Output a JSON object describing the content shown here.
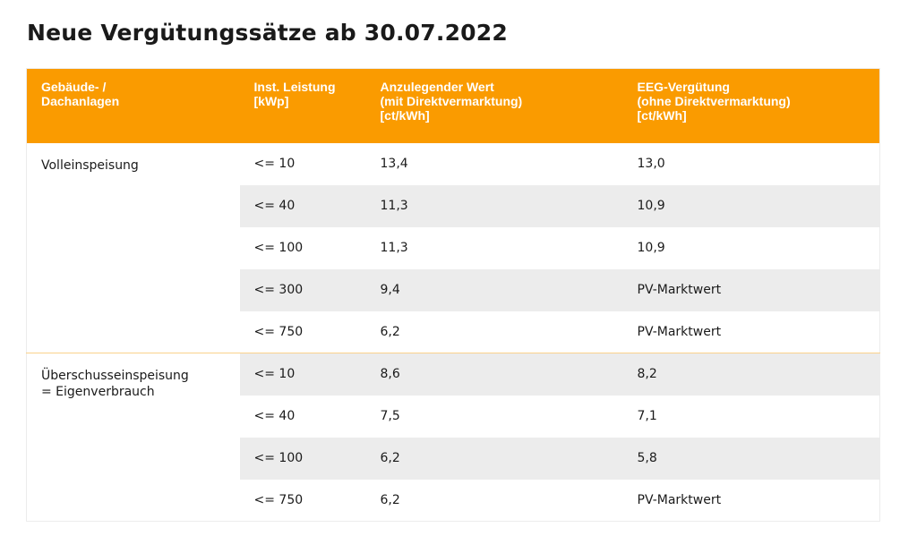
{
  "title": "Neue Vergütungssätze ab 30.07.2022",
  "table": {
    "headers": [
      [
        "Gebäude- /",
        "Dachanlagen"
      ],
      [
        "Inst. Leistung",
        "[kWp]"
      ],
      [
        "Anzulegender Wert",
        "(mit Direktvermarktung)",
        "[ct/kWh]"
      ],
      [
        "EEG-Vergütung",
        "(ohne Direktvermarktung)",
        "[ct/kWh]"
      ]
    ],
    "groups": [
      {
        "label": [
          "Volleinspeisung"
        ],
        "rows": [
          {
            "leistung": "<= 10",
            "anzulegender_wert": "13,4",
            "eeg_verguetung": "13,0"
          },
          {
            "leistung": "<= 40",
            "anzulegender_wert": "11,3",
            "eeg_verguetung": "10,9"
          },
          {
            "leistung": "<= 100",
            "anzulegender_wert": "11,3",
            "eeg_verguetung": "10,9"
          },
          {
            "leistung": "<= 300",
            "anzulegender_wert": "9,4",
            "eeg_verguetung": "PV-Marktwert"
          },
          {
            "leistung": "<= 750",
            "anzulegender_wert": "6,2",
            "eeg_verguetung": "PV-Marktwert"
          }
        ]
      },
      {
        "label": [
          "Überschusseinspeisung",
          "= Eigenverbrauch"
        ],
        "rows": [
          {
            "leistung": "<= 10",
            "anzulegender_wert": "8,6",
            "eeg_verguetung": "8,2"
          },
          {
            "leistung": "<= 40",
            "anzulegender_wert": "7,5",
            "eeg_verguetung": "7,1"
          },
          {
            "leistung": "<= 100",
            "anzulegender_wert": "6,2",
            "eeg_verguetung": "5,8"
          },
          {
            "leistung": "<= 750",
            "anzulegender_wert": "6,2",
            "eeg_verguetung": "PV-Marktwert"
          }
        ]
      }
    ]
  },
  "colors": {
    "header_background": "#fa9b00",
    "header_text": "#ffffff",
    "row_shade": "#ececec",
    "group_divider": "#fad28c",
    "text": "#1a1a1a"
  }
}
